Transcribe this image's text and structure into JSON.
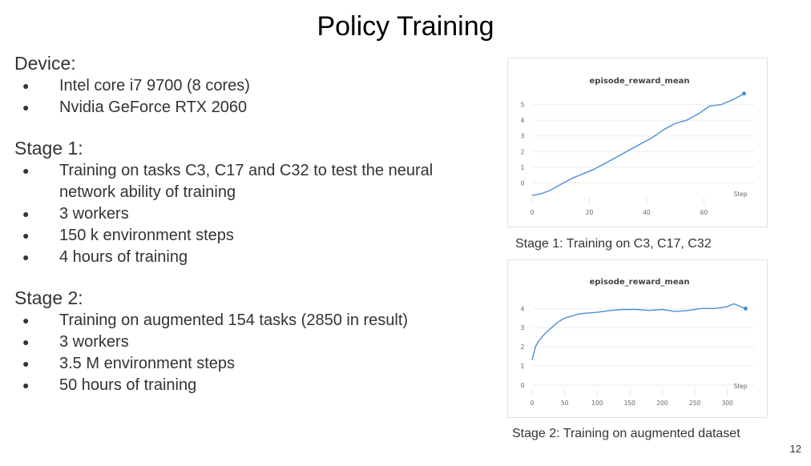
{
  "slide": {
    "title": "Policy Training",
    "page_number": "12"
  },
  "sections": [
    {
      "heading": "Device:",
      "bullets": [
        "Intel core i7 9700 (8 cores)",
        "Nvidia GeForce RTX 2060"
      ]
    },
    {
      "heading": "Stage 1:",
      "bullets": [
        "Training on tasks C3, C17 and C32 to test the neural network ability of training",
        "3 workers",
        "150 k environment steps",
        "4 hours of training"
      ]
    },
    {
      "heading": "Stage 2:",
      "bullets": [
        "Training on augmented 154 tasks (2850 in result)",
        "3 workers",
        "3.5 M environment steps",
        "50 hours of training"
      ]
    }
  ],
  "captions": {
    "stage1": "Stage 1: Training on C3, C17, C32",
    "stage2": "Stage 2: Training on augmented dataset"
  },
  "chart_data": [
    {
      "type": "line",
      "title": "episode_reward_mean",
      "xlabel": "Step",
      "x_ticks": [
        0,
        20,
        40,
        60
      ],
      "y_ticks": [
        0,
        1,
        2,
        3,
        4,
        5
      ],
      "xlim": [
        0,
        75
      ],
      "ylim": [
        -1,
        6
      ],
      "line_color": "#4a8fd6",
      "series": [
        {
          "x": [
            0,
            3,
            6,
            10,
            14,
            18,
            22,
            26,
            30,
            34,
            38,
            42,
            46,
            50,
            54,
            58,
            62,
            66,
            70,
            74
          ],
          "y": [
            -0.8,
            -0.7,
            -0.5,
            -0.1,
            0.3,
            0.6,
            0.9,
            1.3,
            1.7,
            2.1,
            2.5,
            2.9,
            3.4,
            3.8,
            4.0,
            4.4,
            4.9,
            5.0,
            5.3,
            5.7
          ]
        }
      ]
    },
    {
      "type": "line",
      "title": "episode_reward_mean",
      "xlabel": "Step",
      "x_ticks": [
        0,
        50,
        100,
        150,
        200,
        250,
        300
      ],
      "y_ticks": [
        0,
        1,
        2,
        3,
        4
      ],
      "xlim": [
        0,
        330
      ],
      "ylim": [
        -0.3,
        4.6
      ],
      "line_color": "#4a8fd6",
      "series": [
        {
          "x": [
            0,
            5,
            10,
            20,
            30,
            40,
            50,
            60,
            70,
            80,
            100,
            120,
            140,
            160,
            180,
            200,
            220,
            240,
            260,
            280,
            300,
            310,
            320,
            328
          ],
          "y": [
            1.3,
            2.0,
            2.3,
            2.7,
            3.0,
            3.3,
            3.5,
            3.6,
            3.7,
            3.75,
            3.8,
            3.9,
            3.95,
            3.95,
            3.9,
            3.95,
            3.85,
            3.9,
            4.0,
            4.0,
            4.1,
            4.25,
            4.1,
            4.0
          ]
        }
      ]
    }
  ]
}
